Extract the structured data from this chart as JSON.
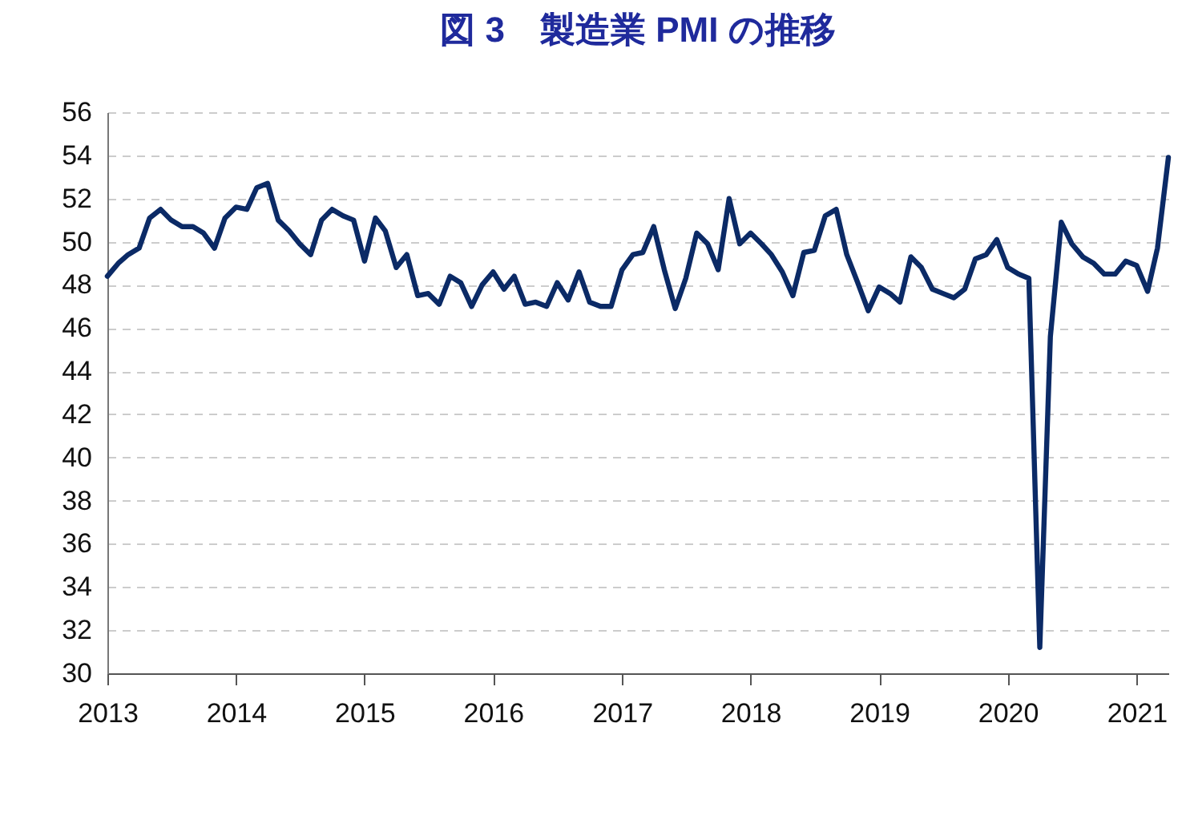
{
  "chart_data": {
    "type": "line",
    "title": "図 3　製造業 PMI の推移",
    "x": [
      "2013-01",
      "2013-02",
      "2013-03",
      "2013-04",
      "2013-05",
      "2013-06",
      "2013-07",
      "2013-08",
      "2013-09",
      "2013-10",
      "2013-11",
      "2013-12",
      "2014-01",
      "2014-02",
      "2014-03",
      "2014-04",
      "2014-05",
      "2014-06",
      "2014-07",
      "2014-08",
      "2014-09",
      "2014-10",
      "2014-11",
      "2014-12",
      "2015-01",
      "2015-02",
      "2015-03",
      "2015-04",
      "2015-05",
      "2015-06",
      "2015-07",
      "2015-08",
      "2015-09",
      "2015-10",
      "2015-11",
      "2015-12",
      "2016-01",
      "2016-02",
      "2016-03",
      "2016-04",
      "2016-05",
      "2016-06",
      "2016-07",
      "2016-08",
      "2016-09",
      "2016-10",
      "2016-11",
      "2016-12",
      "2017-01",
      "2017-02",
      "2017-03",
      "2017-04",
      "2017-05",
      "2017-06",
      "2017-07",
      "2017-08",
      "2017-09",
      "2017-10",
      "2017-11",
      "2017-12",
      "2018-01",
      "2018-02",
      "2018-03",
      "2018-04",
      "2018-05",
      "2018-06",
      "2018-07",
      "2018-08",
      "2018-09",
      "2018-10",
      "2018-11",
      "2018-12",
      "2019-01",
      "2019-02",
      "2019-03",
      "2019-04",
      "2019-05",
      "2019-06",
      "2019-07",
      "2019-08",
      "2019-09",
      "2019-10",
      "2019-11",
      "2019-12",
      "2020-01",
      "2020-02",
      "2020-03",
      "2020-04",
      "2020-05",
      "2020-06",
      "2020-07",
      "2020-08",
      "2020-09",
      "2020-10",
      "2020-11",
      "2020-12",
      "2021-01",
      "2021-02",
      "2021-03",
      "2021-04"
    ],
    "series": [
      {
        "color": "#0b2a66",
        "values": [
          48.4,
          49.0,
          49.4,
          49.7,
          51.1,
          51.5,
          51.0,
          50.7,
          50.7,
          50.4,
          49.7,
          51.1,
          51.6,
          51.5,
          52.5,
          52.7,
          51.0,
          50.5,
          49.9,
          49.4,
          51.0,
          51.5,
          51.2,
          51.0,
          49.1,
          51.1,
          50.5,
          48.8,
          49.4,
          47.5,
          47.6,
          47.1,
          48.4,
          48.1,
          47.0,
          48.0,
          48.6,
          47.8,
          48.4,
          47.1,
          47.2,
          47.0,
          48.1,
          47.3,
          48.6,
          47.2,
          47.0,
          47.0,
          48.7,
          49.4,
          49.5,
          50.7,
          48.7,
          46.9,
          48.3,
          50.4,
          49.9,
          48.7,
          52.0,
          49.9,
          50.4,
          49.9,
          49.4,
          48.6,
          47.5,
          49.5,
          49.6,
          51.2,
          51.5,
          49.4,
          48.1,
          46.8,
          47.9,
          47.6,
          47.2,
          49.3,
          48.8,
          47.8,
          47.6,
          47.4,
          47.8,
          49.2,
          49.4,
          50.1,
          48.8,
          48.5,
          48.3,
          31.2,
          45.6,
          50.9,
          49.9,
          49.3,
          49.0,
          48.5,
          48.5,
          49.1,
          48.9,
          47.7,
          49.7,
          53.9
        ]
      }
    ],
    "xlim": [
      "2013-01",
      "2021-04"
    ],
    "xticks": [
      "2013",
      "2014",
      "2015",
      "2016",
      "2017",
      "2018",
      "2019",
      "2020",
      "2021"
    ],
    "ylim": [
      30,
      56
    ],
    "yticks": [
      30,
      32,
      34,
      36,
      38,
      40,
      42,
      44,
      46,
      48,
      50,
      52,
      54,
      56
    ],
    "grid": "y",
    "line_style": "solid",
    "marker": "none"
  }
}
